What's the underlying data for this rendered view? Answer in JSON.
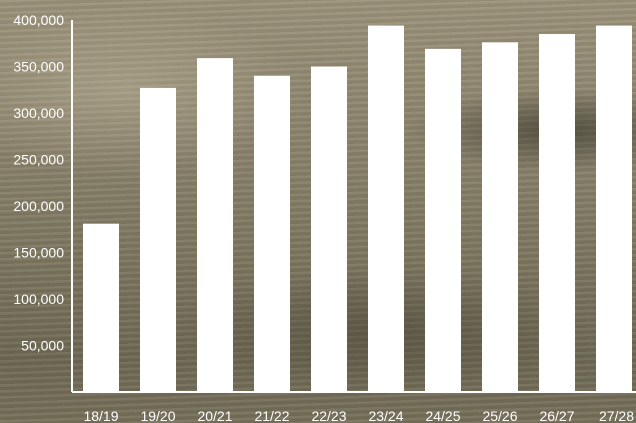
{
  "chart_data": {
    "type": "bar",
    "categories": [
      "18/19",
      "19/20",
      "20/21",
      "21/22",
      "22/23",
      "23/24",
      "24/25",
      "25/26",
      "26/27",
      "27/28"
    ],
    "values": [
      181000,
      327000,
      359000,
      340000,
      350000,
      394000,
      369000,
      376000,
      385000,
      394000
    ],
    "ylim": [
      0,
      400000
    ],
    "yticks": [
      50000,
      100000,
      150000,
      200000,
      250000,
      300000,
      350000,
      400000
    ],
    "ytick_labels": [
      "50,000",
      "100,000",
      "150,000",
      "200,000",
      "250,000",
      "300,000",
      "350,000",
      "400,000"
    ],
    "bar_color": "#ffffff",
    "grid": false,
    "legend": "none"
  }
}
